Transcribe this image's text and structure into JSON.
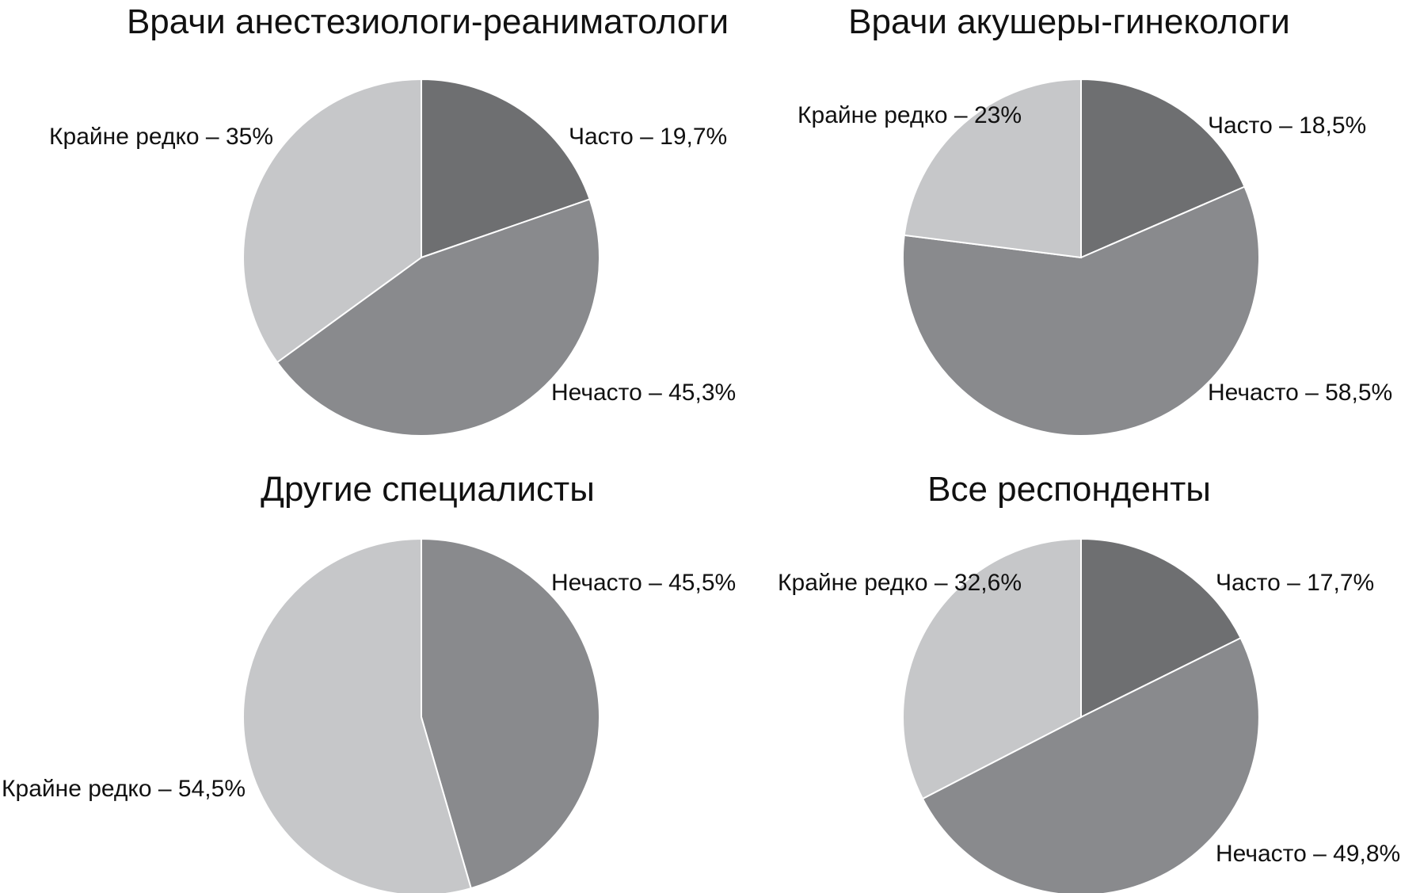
{
  "chart_data": [
    {
      "type": "pie",
      "title": "Врачи анестезиологи-реаниматологи",
      "slices": [
        {
          "label": "Часто – 19,7%",
          "value": 19.7,
          "color": "#6e6f71"
        },
        {
          "label": "Нечасто – 45,3%",
          "value": 45.3,
          "color": "#898a8d"
        },
        {
          "label": "Крайне редко – 35%",
          "value": 35,
          "color": "#c6c7c9"
        }
      ]
    },
    {
      "type": "pie",
      "title": "Врачи акушеры-гинекологи",
      "slices": [
        {
          "label": "Часто – 18,5%",
          "value": 18.5,
          "color": "#6e6f71"
        },
        {
          "label": "Нечасто – 58,5%",
          "value": 58.5,
          "color": "#898a8d"
        },
        {
          "label": "Крайне редко – 23%",
          "value": 23,
          "color": "#c6c7c9"
        }
      ]
    },
    {
      "type": "pie",
      "title": "Другие специалисты",
      "slices": [
        {
          "label": "Нечасто – 45,5%",
          "value": 45.5,
          "color": "#898a8d"
        },
        {
          "label": "Крайне редко – 54,5%",
          "value": 54.5,
          "color": "#c6c7c9"
        }
      ]
    },
    {
      "type": "pie",
      "title": "Все респонденты",
      "slices": [
        {
          "label": "Часто – 17,7%",
          "value": 17.7,
          "color": "#6e6f71"
        },
        {
          "label": "Нечасто – 49,8%",
          "value": 49.8,
          "color": "#898a8d"
        },
        {
          "label": "Крайне редко – 32,6%",
          "value": 32.6,
          "color": "#c6c7c9"
        }
      ]
    }
  ]
}
